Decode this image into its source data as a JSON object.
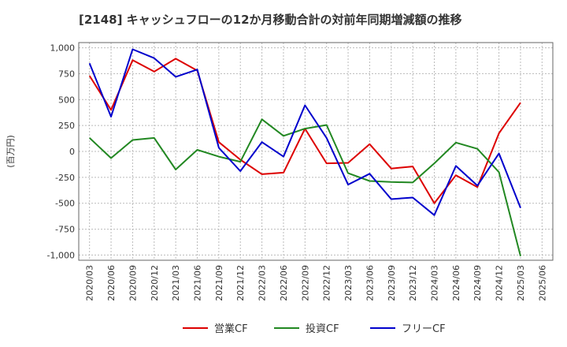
{
  "chart_data": {
    "type": "line",
    "title": "[2148]  キャッシュフローの12か月移動合計の対前年同期増減額の推移",
    "ylabel": "(百万円)",
    "xlabel": "",
    "ylim": [
      -1050,
      1050
    ],
    "yticks": [
      1000,
      750,
      500,
      250,
      0,
      -250,
      -500,
      -750,
      -1000
    ],
    "ytick_labels": [
      "1,000",
      "750",
      "500",
      "250",
      "0",
      "-250",
      "-500",
      "-750",
      "-1,000"
    ],
    "grid": true,
    "legend_position": "bottom",
    "categories": [
      "2020/03",
      "2020/06",
      "2020/09",
      "2020/12",
      "2021/03",
      "2021/06",
      "2021/09",
      "2021/12",
      "2022/03",
      "2022/06",
      "2022/09",
      "2022/12",
      "2023/03",
      "2023/06",
      "2023/09",
      "2023/12",
      "2024/03",
      "2024/06",
      "2024/09",
      "2024/12",
      "2025/03",
      "2025/06"
    ],
    "series": [
      {
        "name": "営業CF",
        "color": "#dd0000",
        "values": [
          730,
          400,
          880,
          770,
          895,
          780,
          90,
          -80,
          -220,
          -205,
          220,
          -115,
          -110,
          70,
          -165,
          -145,
          -500,
          -230,
          -345,
          175,
          470,
          null
        ]
      },
      {
        "name": "投資CF",
        "color": "#228822",
        "values": [
          130,
          -65,
          110,
          130,
          -175,
          15,
          -50,
          -100,
          310,
          150,
          220,
          255,
          -210,
          -285,
          -295,
          -300,
          -115,
          85,
          25,
          -200,
          -1010,
          null
        ]
      },
      {
        "name": "フリーCF",
        "color": "#0000cc",
        "values": [
          850,
          335,
          985,
          900,
          720,
          790,
          35,
          -190,
          90,
          -50,
          445,
          130,
          -320,
          -215,
          -460,
          -445,
          -615,
          -140,
          -330,
          -20,
          -545,
          null
        ]
      }
    ]
  }
}
